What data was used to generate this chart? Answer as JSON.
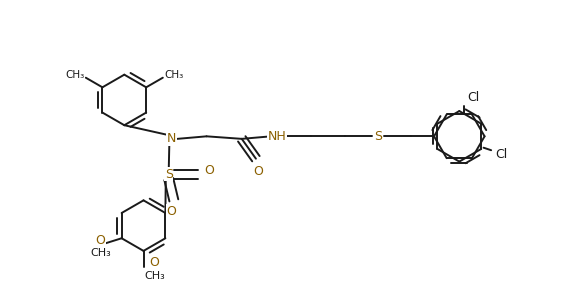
{
  "bg_color": "#ffffff",
  "bond_color": "#1a1a1a",
  "heteroatom_color": "#8B6000",
  "line_width": 1.4,
  "figsize": [
    5.67,
    3.06
  ],
  "dpi": 100,
  "xlim": [
    0,
    10.0
  ],
  "ylim": [
    -0.5,
    5.5
  ]
}
